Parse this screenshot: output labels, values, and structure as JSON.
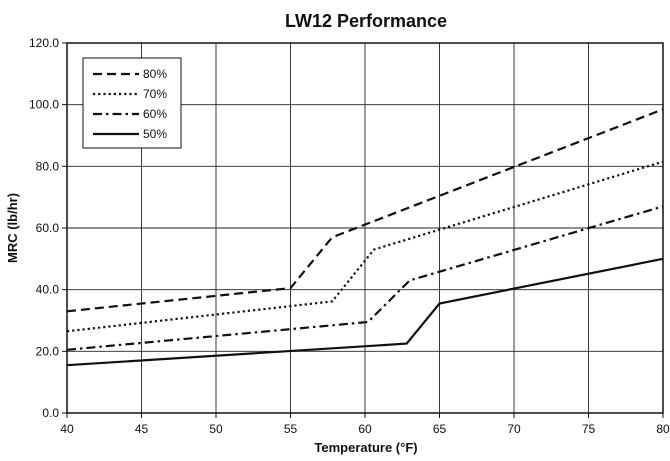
{
  "chart_data": {
    "type": "line",
    "title": "LW12 Performance",
    "xlabel": "Temperature (°F)",
    "ylabel": "MRC (lb/hr)",
    "xlim": [
      40,
      80
    ],
    "ylim": [
      0,
      120
    ],
    "xticks": [
      40,
      45,
      50,
      55,
      60,
      65,
      70,
      75,
      80
    ],
    "yticks": [
      0,
      20,
      40,
      60,
      80,
      100,
      120
    ],
    "xtick_labels": [
      "40",
      "45",
      "50",
      "55",
      "60",
      "65",
      "70",
      "75",
      "80"
    ],
    "ytick_labels": [
      "0.0",
      "20.0",
      "40.0",
      "60.0",
      "80.0",
      "100.0",
      "120.0"
    ],
    "grid": true,
    "legend_position": "top-left",
    "series": [
      {
        "name": "80%",
        "style": "dashed",
        "x": [
          40,
          55,
          57.8,
          80
        ],
        "y": [
          33,
          40.5,
          57,
          98.5
        ]
      },
      {
        "name": "70%",
        "style": "dotted",
        "x": [
          40,
          57.8,
          60.6,
          80
        ],
        "y": [
          26.5,
          36.2,
          53,
          81.5
        ]
      },
      {
        "name": "60%",
        "style": "dash-dot",
        "x": [
          40,
          60.2,
          63,
          80
        ],
        "y": [
          20.5,
          29.5,
          43,
          67
        ]
      },
      {
        "name": "50%",
        "style": "solid",
        "x": [
          40,
          62.8,
          65,
          80
        ],
        "y": [
          15.5,
          22.5,
          35.5,
          50
        ]
      }
    ],
    "colors": {
      "line": "#111111",
      "grid": "#222222"
    }
  }
}
